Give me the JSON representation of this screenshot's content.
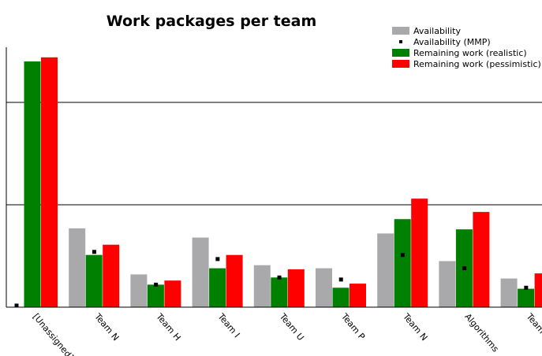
{
  "chart_data": {
    "type": "bar",
    "title": "Work packages per team",
    "xlabel": "",
    "ylabel": "",
    "ylim": [
      0,
      24
    ],
    "grid_values": [
      10,
      20
    ],
    "grid": true,
    "legend_position": "top-right",
    "categories": [
      "[Unassigned]",
      "Team N",
      "Team H",
      "Team I",
      "Team U",
      "Team P",
      "Team N",
      "Algorithms",
      "Team S"
    ],
    "series": [
      {
        "name": "Availability",
        "kind": "bar",
        "color": "#a9a9ab",
        "values": [
          0,
          7.7,
          3.2,
          6.8,
          4.1,
          3.8,
          7.2,
          4.5,
          2.8
        ]
      },
      {
        "name": "Availability (MMP)",
        "kind": "marker",
        "color": "#000000",
        "values": [
          0,
          5.4,
          2.2,
          4.7,
          2.9,
          2.7,
          5.1,
          3.8,
          1.9
        ]
      },
      {
        "name": "Remaining work (realistic)",
        "kind": "bar",
        "color": "#008000",
        "values": [
          24,
          5.1,
          2.2,
          3.8,
          2.9,
          1.9,
          8.6,
          7.6,
          1.8
        ]
      },
      {
        "name": "Remaining work (pessimistic)",
        "kind": "bar",
        "color": "#ff0000",
        "values": [
          24.4,
          6.1,
          2.6,
          5.1,
          3.7,
          2.3,
          10.6,
          9.3,
          3.3
        ]
      }
    ]
  }
}
